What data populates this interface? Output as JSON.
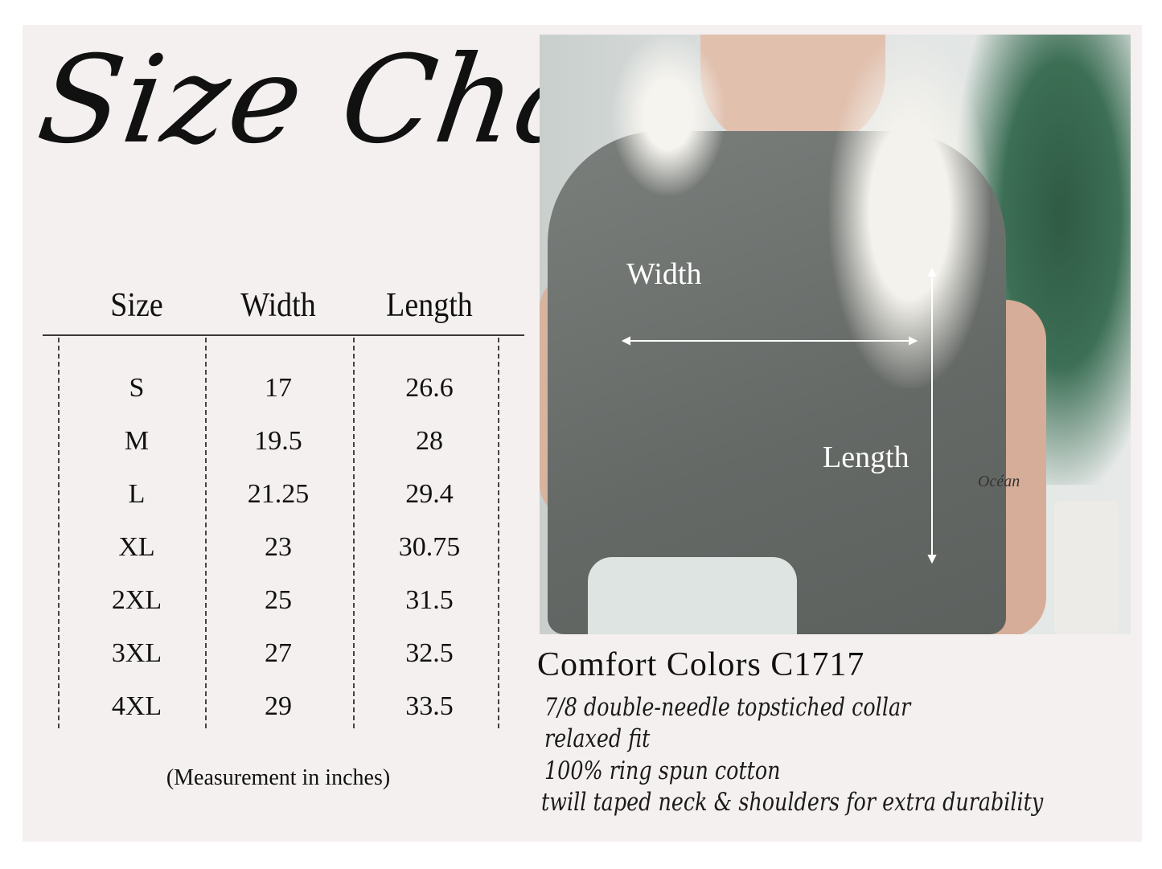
{
  "title": "Size Chart",
  "table": {
    "headers": [
      "Size",
      "Width",
      "Length"
    ],
    "rows": [
      [
        "S",
        "17",
        "26.6"
      ],
      [
        "M",
        "19.5",
        "28"
      ],
      [
        "L",
        "21.25",
        "29.4"
      ],
      [
        "XL",
        "23",
        "30.75"
      ],
      [
        "2XL",
        "25",
        "31.5"
      ],
      [
        "3XL",
        "27",
        "32.5"
      ],
      [
        "4XL",
        "29",
        "33.5"
      ]
    ],
    "note": "(Measurement in inches)"
  },
  "photo": {
    "width_label": "Width",
    "length_label": "Length",
    "tattoo": "Océan"
  },
  "product": {
    "name": "Comfort Colors C1717",
    "features": [
      "7/8 double-needle topstiched collar",
      "relaxed fit",
      "100% ring spun cotton",
      "twill taped neck & shoulders for extra durability"
    ]
  },
  "colors": {
    "background": "#f4f0ef",
    "shirt": "#6e726f",
    "text": "#111111"
  }
}
